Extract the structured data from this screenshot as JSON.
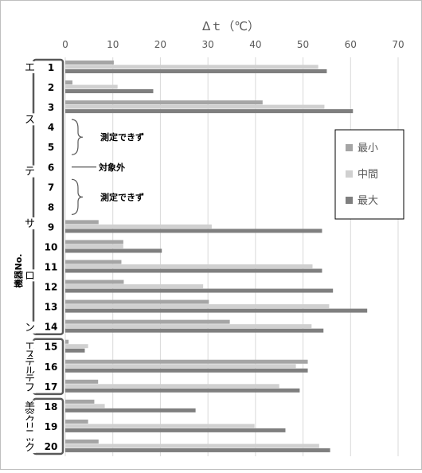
{
  "chart_data": {
    "type": "bar",
    "orientation": "horizontal",
    "title": "",
    "xlabel": "Δｔ（℃）",
    "ylabel": "機器No.",
    "xlim": [
      0,
      70
    ],
    "x_ticks": [
      0,
      10,
      20,
      30,
      40,
      50,
      60,
      70
    ],
    "grid": true,
    "legend_position": "right",
    "categories": [
      "1",
      "2",
      "3",
      "4",
      "5",
      "6",
      "7",
      "8",
      "9",
      "10",
      "11",
      "12",
      "13",
      "14",
      "15",
      "16",
      "17",
      "18",
      "19",
      "20"
    ],
    "series": [
      {
        "name": "最小",
        "color": "#a5a5a5",
        "values": [
          10.2,
          1.5,
          41.5,
          null,
          null,
          null,
          null,
          null,
          7.0,
          12.2,
          11.8,
          12.3,
          30.2,
          34.6,
          0.7,
          51.0,
          6.9,
          6.1,
          4.8,
          7.0
        ]
      },
      {
        "name": "中間",
        "color": "#d0d0d0",
        "values": [
          53.2,
          11.0,
          54.5,
          null,
          null,
          null,
          null,
          null,
          30.8,
          12.2,
          52.0,
          29.0,
          55.5,
          51.8,
          4.8,
          48.5,
          45.0,
          8.3,
          39.8,
          53.4
        ]
      },
      {
        "name": "最大",
        "color": "#7f7f7f",
        "values": [
          55.0,
          18.5,
          60.5,
          null,
          null,
          null,
          null,
          null,
          54.0,
          20.3,
          54.0,
          56.3,
          63.5,
          54.3,
          4.1,
          51.0,
          49.3,
          27.4,
          46.3,
          55.7
        ]
      }
    ],
    "groups": [
      {
        "label": "エステサロン",
        "from": "1",
        "to": "14"
      },
      {
        "label": "エステルテフ",
        "from": "15",
        "to": "17"
      },
      {
        "label": "美容クリニック",
        "from": "18",
        "to": "20"
      }
    ],
    "annotations": [
      {
        "text": "測定できず",
        "rows": [
          "4",
          "5"
        ]
      },
      {
        "text": "対象外",
        "rows": [
          "6"
        ]
      },
      {
        "text": "測定できず",
        "rows": [
          "7",
          "8"
        ]
      }
    ]
  }
}
